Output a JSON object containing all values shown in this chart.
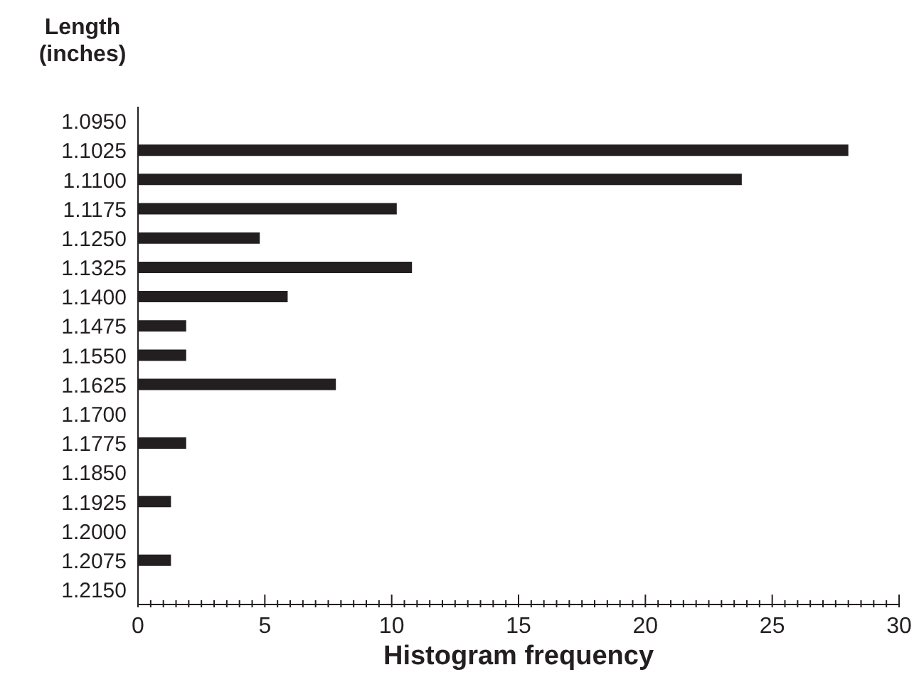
{
  "chart_data": {
    "type": "bar",
    "orientation": "horizontal",
    "ylabel": "Length (inches)",
    "xlabel": "Histogram frequency",
    "categories": [
      "1.0950",
      "1.1025",
      "1.1100",
      "1.1175",
      "1.1250",
      "1.1325",
      "1.1400",
      "1.1475",
      "1.1550",
      "1.1625",
      "1.1700",
      "1.1775",
      "1.1850",
      "1.1925",
      "1.2000",
      "1.2075",
      "1.2150"
    ],
    "values": [
      0,
      28,
      23.8,
      10.2,
      4.8,
      10.8,
      5.9,
      1.9,
      1.9,
      7.8,
      0,
      1.9,
      0,
      1.3,
      0,
      1.3,
      0
    ],
    "color": "#231f20",
    "xlim": [
      0,
      30
    ],
    "xticks": [
      0,
      {
        "value": 0.5,
        "label": null
      },
      {
        "value": 1,
        "label": null
      },
      {
        "value": 1.5,
        "label": null
      },
      {
        "value": 2,
        "label": null
      },
      {
        "value": 2.5,
        "label": null
      },
      {
        "value": 3,
        "label": null
      },
      {
        "value": 3.5,
        "label": null
      },
      {
        "value": 4,
        "label": null
      },
      {
        "value": 4.5,
        "label": null
      },
      5,
      {
        "value": 5.5,
        "label": null
      },
      {
        "value": 6,
        "label": null
      },
      {
        "value": 6.5,
        "label": null
      },
      {
        "value": 7,
        "label": null
      },
      {
        "value": 7.5,
        "label": null
      },
      {
        "value": 8,
        "label": null
      },
      {
        "value": 8.5,
        "label": null
      },
      {
        "value": 9,
        "label": null
      },
      {
        "value": 9.5,
        "label": null
      },
      10,
      {
        "value": 10.5,
        "label": null
      },
      {
        "value": 11,
        "label": null
      },
      {
        "value": 11.5,
        "label": null
      },
      {
        "value": 12,
        "label": null
      },
      {
        "value": 12.5,
        "label": null
      },
      {
        "value": 13,
        "label": null
      },
      {
        "value": 13.5,
        "label": null
      },
      {
        "value": 14,
        "label": null
      },
      {
        "value": 14.5,
        "label": null
      },
      15,
      {
        "value": 15.5,
        "label": null
      },
      {
        "value": 16,
        "label": null
      },
      {
        "value": 16.5,
        "label": null
      },
      {
        "value": 17,
        "label": null
      },
      {
        "value": 17.5,
        "label": null
      },
      {
        "value": 18,
        "label": null
      },
      {
        "value": 18.5,
        "label": null
      },
      {
        "value": 19,
        "label": null
      },
      {
        "value": 19.5,
        "label": null
      },
      20,
      {
        "value": 20.5,
        "label": null
      },
      {
        "value": 21,
        "label": null
      },
      {
        "value": 21.5,
        "label": null
      },
      {
        "value": 22,
        "label": null
      },
      {
        "value": 22.5,
        "label": null
      },
      {
        "value": 23,
        "label": null
      },
      {
        "value": 23.5,
        "label": null
      },
      {
        "value": 24,
        "label": null
      },
      {
        "value": 24.5,
        "label": null
      },
      25,
      {
        "value": 25.5,
        "label": null
      },
      {
        "value": 26,
        "label": null
      },
      {
        "value": 26.5,
        "label": null
      },
      {
        "value": 27,
        "label": null
      },
      {
        "value": 27.5,
        "label": null
      },
      {
        "value": 28,
        "label": null
      },
      {
        "value": 28.5,
        "label": null
      },
      {
        "value": 29,
        "label": null
      },
      {
        "value": 29.5,
        "label": null
      },
      30
    ],
    "grid": false,
    "legend": false
  }
}
